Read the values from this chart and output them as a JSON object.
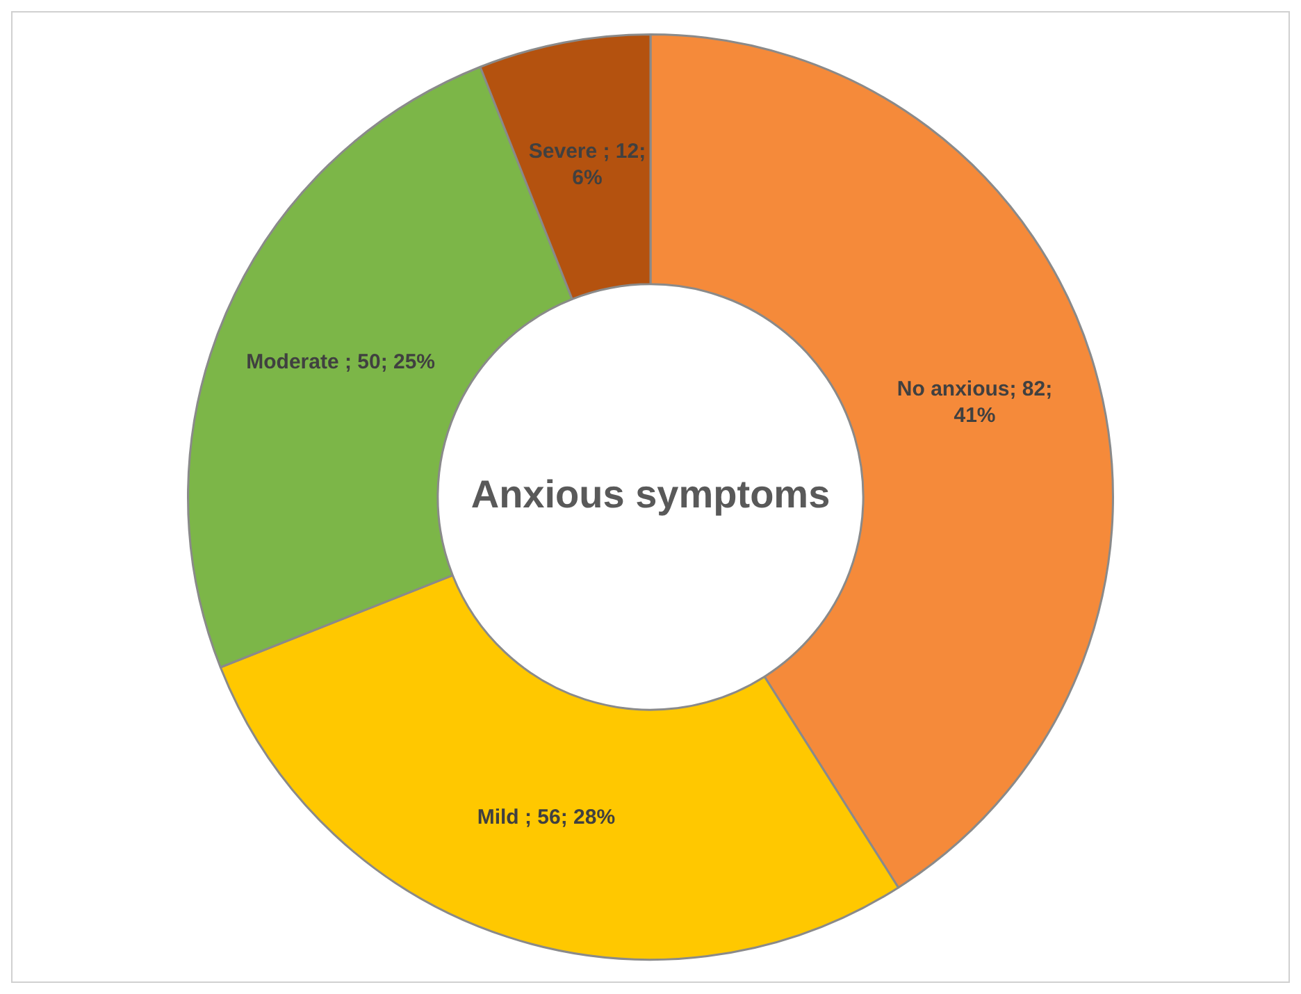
{
  "chart_data": {
    "type": "donut",
    "title": "Anxious symptoms",
    "categories": [
      "No anxious",
      "Mild",
      "Moderate",
      "Severe"
    ],
    "values": [
      82,
      56,
      50,
      12
    ],
    "colors": [
      "#f58a3a",
      "#ffc800",
      "#7cb648",
      "#b4520f"
    ],
    "value_labels": [
      "; 82; 41%",
      " ; 56; 28%",
      " ; 50; 25%",
      " ; 12; 6%"
    ],
    "legend": false
  }
}
